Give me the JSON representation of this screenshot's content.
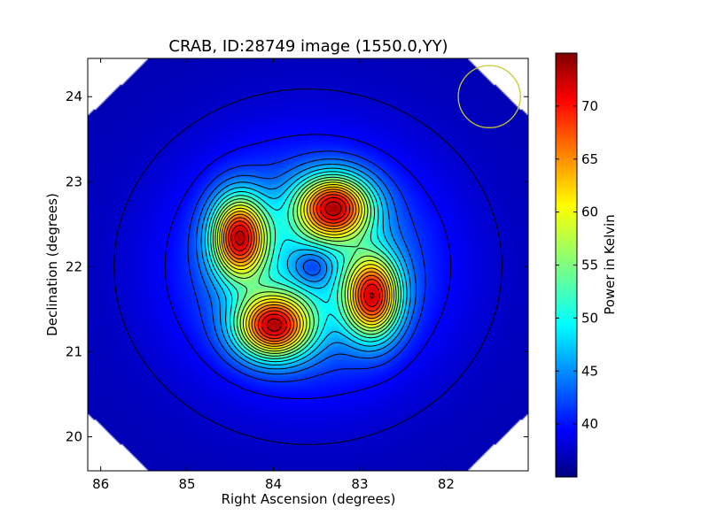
{
  "chart_data": {
    "type": "heatmap",
    "title": "CRAB, ID:28749 image (1550.0,YY)",
    "xlabel": "Right Ascension (degrees)",
    "ylabel": "Declination (degrees)",
    "xlim": [
      86.15,
      81.05
    ],
    "ylim": [
      19.6,
      24.45
    ],
    "x_ticks": [
      86,
      85,
      84,
      83,
      82
    ],
    "y_ticks": [
      20,
      21,
      22,
      23,
      24
    ],
    "colorbar": {
      "label": "Power in Kelvin",
      "range": [
        35.0,
        75.0
      ],
      "ticks": [
        40,
        45,
        50,
        55,
        60,
        65,
        70
      ],
      "colormap": "jet"
    },
    "background_level": 37,
    "sources": [
      {
        "ra": 83.3,
        "dec": 22.7,
        "peak": 74,
        "sigma_x": 0.3,
        "sigma_y": 0.26
      },
      {
        "ra": 84.4,
        "dec": 22.35,
        "peak": 74,
        "sigma_x": 0.22,
        "sigma_y": 0.33
      },
      {
        "ra": 84.0,
        "dec": 21.3,
        "peak": 74,
        "sigma_x": 0.3,
        "sigma_y": 0.26
      },
      {
        "ra": 82.85,
        "dec": 21.65,
        "peak": 73,
        "sigma_x": 0.22,
        "sigma_y": 0.33
      }
    ],
    "central_depression": {
      "ra": 83.55,
      "dec": 22.0,
      "level": 43
    },
    "beam_circle": {
      "ra": 81.5,
      "dec": 24.0,
      "radius_deg": 0.36,
      "color": "#c8c830"
    },
    "contour_color": "#000000"
  }
}
